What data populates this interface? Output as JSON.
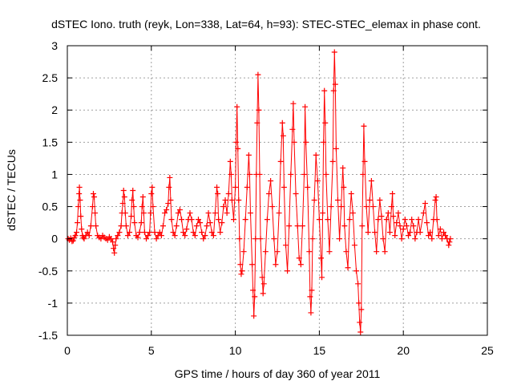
{
  "chart_data": {
    "type": "scatter",
    "title": "dSTEC Iono. truth (reyk, Lon=338, Lat=64, h=93): STEC-STEC_elemax in phase cont.",
    "xlabel": "GPS time / hours of day 360 of year 2011",
    "ylabel": "dSTEC  / TECUs",
    "xlim": [
      0,
      25
    ],
    "ylim": [
      -1.5,
      3
    ],
    "x_ticks": [
      "0",
      "5",
      "10",
      "15",
      "20",
      "25"
    ],
    "y_ticks": [
      "-1.5",
      "-1",
      "-0.5",
      "0",
      "0.5",
      "1",
      "1.5",
      "2",
      "2.5",
      "3"
    ],
    "grid": true,
    "marker": "+",
    "color": "#ff0000",
    "series": [
      {
        "values": [
          [
            0.05,
            0.0
          ],
          [
            0.12,
            -0.02
          ],
          [
            0.2,
            0.01
          ],
          [
            0.28,
            -0.04
          ],
          [
            0.35,
            -0.03
          ],
          [
            0.42,
            0.02
          ],
          [
            0.48,
            0.05
          ],
          [
            0.55,
            0.1
          ],
          [
            0.6,
            0.25
          ],
          [
            0.65,
            0.5
          ],
          [
            0.7,
            0.7
          ],
          [
            0.72,
            0.8
          ],
          [
            0.76,
            0.6
          ],
          [
            0.8,
            0.35
          ],
          [
            0.85,
            0.15
          ],
          [
            0.9,
            0.05
          ],
          [
            0.95,
            0.02
          ],
          [
            1.0,
            0.0
          ],
          [
            1.1,
            0.05
          ],
          [
            1.2,
            0.1
          ],
          [
            1.3,
            0.05
          ],
          [
            1.4,
            0.2
          ],
          [
            1.5,
            0.5
          ],
          [
            1.55,
            0.7
          ],
          [
            1.6,
            0.65
          ],
          [
            1.65,
            0.4
          ],
          [
            1.7,
            0.2
          ],
          [
            1.8,
            0.05
          ],
          [
            1.9,
            0.02
          ],
          [
            2.0,
            0.0
          ],
          [
            2.1,
            0.05
          ],
          [
            2.2,
            0.02
          ],
          [
            2.3,
            0.0
          ],
          [
            2.4,
            -0.02
          ],
          [
            2.5,
            0.03
          ],
          [
            2.6,
            0.0
          ],
          [
            2.7,
            -0.05
          ],
          [
            2.75,
            -0.15
          ],
          [
            2.8,
            -0.22
          ],
          [
            2.85,
            -0.1
          ],
          [
            2.9,
            0.0
          ],
          [
            3.0,
            0.05
          ],
          [
            3.1,
            0.1
          ],
          [
            3.2,
            0.2
          ],
          [
            3.25,
            0.4
          ],
          [
            3.3,
            0.55
          ],
          [
            3.35,
            0.75
          ],
          [
            3.4,
            0.65
          ],
          [
            3.45,
            0.4
          ],
          [
            3.5,
            0.2
          ],
          [
            3.6,
            0.05
          ],
          [
            3.7,
            0.1
          ],
          [
            3.8,
            0.35
          ],
          [
            3.85,
            0.6
          ],
          [
            3.9,
            0.75
          ],
          [
            3.95,
            0.5
          ],
          [
            4.0,
            0.25
          ],
          [
            4.1,
            0.05
          ],
          [
            4.2,
            0.02
          ],
          [
            4.3,
            0.1
          ],
          [
            4.4,
            0.25
          ],
          [
            4.45,
            0.5
          ],
          [
            4.5,
            0.65
          ],
          [
            4.55,
            0.4
          ],
          [
            4.6,
            0.1
          ],
          [
            4.7,
            0.0
          ],
          [
            4.8,
            0.05
          ],
          [
            4.9,
            0.1
          ],
          [
            4.95,
            0.4
          ],
          [
            5.0,
            0.7
          ],
          [
            5.05,
            0.8
          ],
          [
            5.1,
            0.5
          ],
          [
            5.2,
            0.1
          ],
          [
            5.3,
            0.0
          ],
          [
            5.4,
            0.05
          ],
          [
            5.5,
            0.1
          ],
          [
            5.6,
            0.05
          ],
          [
            5.7,
            0.2
          ],
          [
            5.8,
            0.4
          ],
          [
            5.9,
            0.45
          ],
          [
            6.0,
            0.55
          ],
          [
            6.05,
            0.8
          ],
          [
            6.1,
            0.95
          ],
          [
            6.15,
            0.6
          ],
          [
            6.2,
            0.3
          ],
          [
            6.3,
            0.1
          ],
          [
            6.4,
            0.05
          ],
          [
            6.5,
            0.2
          ],
          [
            6.6,
            0.4
          ],
          [
            6.7,
            0.45
          ],
          [
            6.8,
            0.3
          ],
          [
            6.9,
            0.1
          ],
          [
            7.0,
            0.05
          ],
          [
            7.1,
            0.15
          ],
          [
            7.2,
            0.3
          ],
          [
            7.3,
            0.4
          ],
          [
            7.4,
            0.3
          ],
          [
            7.5,
            0.1
          ],
          [
            7.6,
            0.05
          ],
          [
            7.7,
            0.2
          ],
          [
            7.8,
            0.3
          ],
          [
            7.9,
            0.25
          ],
          [
            8.0,
            0.1
          ],
          [
            8.1,
            0.0
          ],
          [
            8.2,
            0.05
          ],
          [
            8.3,
            0.2
          ],
          [
            8.4,
            0.4
          ],
          [
            8.5,
            0.25
          ],
          [
            8.6,
            0.1
          ],
          [
            8.7,
            0.05
          ],
          [
            8.8,
            0.4
          ],
          [
            8.9,
            0.8
          ],
          [
            8.95,
            0.7
          ],
          [
            9.0,
            0.3
          ],
          [
            9.1,
            0.1
          ],
          [
            9.2,
            0.25
          ],
          [
            9.3,
            0.5
          ],
          [
            9.4,
            0.6
          ],
          [
            9.5,
            0.4
          ],
          [
            9.6,
            0.7
          ],
          [
            9.7,
            1.2
          ],
          [
            9.75,
            1.0
          ],
          [
            9.8,
            0.6
          ],
          [
            9.9,
            0.3
          ],
          [
            10.0,
            0.8
          ],
          [
            10.05,
            1.5
          ],
          [
            10.1,
            2.05
          ],
          [
            10.15,
            1.4
          ],
          [
            10.2,
            0.6
          ],
          [
            10.25,
            0.0
          ],
          [
            10.3,
            -0.4
          ],
          [
            10.35,
            -0.55
          ],
          [
            10.4,
            -0.5
          ],
          [
            10.5,
            -0.2
          ],
          [
            10.6,
            0.3
          ],
          [
            10.7,
            0.8
          ],
          [
            10.8,
            1.3
          ],
          [
            10.85,
            1.0
          ],
          [
            10.9,
            0.4
          ],
          [
            11.0,
            -0.4
          ],
          [
            11.05,
            -0.8
          ],
          [
            11.1,
            -1.2
          ],
          [
            11.15,
            -0.9
          ],
          [
            11.2,
            0.0
          ],
          [
            11.25,
            1.0
          ],
          [
            11.3,
            1.8
          ],
          [
            11.35,
            2.55
          ],
          [
            11.4,
            2.0
          ],
          [
            11.45,
            1.0
          ],
          [
            11.5,
            0.0
          ],
          [
            11.6,
            -0.6
          ],
          [
            11.65,
            -0.85
          ],
          [
            11.7,
            -0.7
          ],
          [
            11.8,
            -0.2
          ],
          [
            11.9,
            0.3
          ],
          [
            12.0,
            0.7
          ],
          [
            12.1,
            0.9
          ],
          [
            12.2,
            0.5
          ],
          [
            12.3,
            0.0
          ],
          [
            12.4,
            -0.4
          ],
          [
            12.5,
            -0.2
          ],
          [
            12.6,
            0.4
          ],
          [
            12.7,
            1.2
          ],
          [
            12.8,
            1.8
          ],
          [
            12.85,
            1.6
          ],
          [
            12.9,
            0.8
          ],
          [
            13.0,
            -0.1
          ],
          [
            13.1,
            -0.5
          ],
          [
            13.2,
            0.2
          ],
          [
            13.3,
            1.0
          ],
          [
            13.4,
            1.7
          ],
          [
            13.45,
            2.1
          ],
          [
            13.5,
            1.5
          ],
          [
            13.6,
            0.7
          ],
          [
            13.7,
            0.2
          ],
          [
            13.8,
            -0.3
          ],
          [
            13.9,
            -0.4
          ],
          [
            14.0,
            0.2
          ],
          [
            14.1,
            1.0
          ],
          [
            14.15,
            2.05
          ],
          [
            14.2,
            1.5
          ],
          [
            14.3,
            0.8
          ],
          [
            14.4,
            -0.2
          ],
          [
            14.45,
            -0.9
          ],
          [
            14.5,
            -1.15
          ],
          [
            14.55,
            -0.8
          ],
          [
            14.6,
            0.0
          ],
          [
            14.7,
            0.6
          ],
          [
            14.8,
            1.3
          ],
          [
            14.9,
            0.9
          ],
          [
            15.0,
            0.3
          ],
          [
            15.1,
            -0.3
          ],
          [
            15.15,
            -0.6
          ],
          [
            15.2,
            0.4
          ],
          [
            15.25,
            1.5
          ],
          [
            15.3,
            2.3
          ],
          [
            15.35,
            1.8
          ],
          [
            15.4,
            1.0
          ],
          [
            15.5,
            0.3
          ],
          [
            15.6,
            -0.2
          ],
          [
            15.7,
            0.5
          ],
          [
            15.8,
            1.2
          ],
          [
            15.85,
            2.3
          ],
          [
            15.9,
            2.9
          ],
          [
            15.95,
            2.4
          ],
          [
            16.0,
            1.4
          ],
          [
            16.1,
            0.6
          ],
          [
            16.2,
            0.0
          ],
          [
            16.3,
            0.5
          ],
          [
            16.4,
            1.1
          ],
          [
            16.45,
            0.8
          ],
          [
            16.5,
            0.2
          ],
          [
            16.6,
            -0.2
          ],
          [
            16.7,
            -0.45
          ],
          [
            16.8,
            0.3
          ],
          [
            16.9,
            0.7
          ],
          [
            17.0,
            0.4
          ],
          [
            17.1,
            -0.1
          ],
          [
            17.2,
            -0.5
          ],
          [
            17.3,
            -0.7
          ],
          [
            17.35,
            -1.0
          ],
          [
            17.4,
            -1.3
          ],
          [
            17.45,
            -1.45
          ],
          [
            17.5,
            -1.1
          ],
          [
            17.55,
            0.2
          ],
          [
            17.6,
            1.0
          ],
          [
            17.65,
            1.75
          ],
          [
            17.7,
            1.2
          ],
          [
            17.8,
            0.5
          ],
          [
            17.9,
            0.1
          ],
          [
            18.0,
            0.6
          ],
          [
            18.1,
            0.9
          ],
          [
            18.2,
            0.5
          ],
          [
            18.3,
            0.1
          ],
          [
            18.4,
            -0.2
          ],
          [
            18.5,
            0.3
          ],
          [
            18.6,
            0.6
          ],
          [
            18.7,
            0.35
          ],
          [
            18.8,
            0.0
          ],
          [
            18.9,
            -0.2
          ],
          [
            19.0,
            0.3
          ],
          [
            19.1,
            0.4
          ],
          [
            19.2,
            0.1
          ],
          [
            19.3,
            0.5
          ],
          [
            19.35,
            0.7
          ],
          [
            19.4,
            0.35
          ],
          [
            19.5,
            0.05
          ],
          [
            19.6,
            0.25
          ],
          [
            19.7,
            0.4
          ],
          [
            19.8,
            0.2
          ],
          [
            19.9,
            0.0
          ],
          [
            20.0,
            0.15
          ],
          [
            20.1,
            0.3
          ],
          [
            20.2,
            0.2
          ],
          [
            20.3,
            0.05
          ],
          [
            20.4,
            0.1
          ],
          [
            20.5,
            0.3
          ],
          [
            20.6,
            0.2
          ],
          [
            20.7,
            0.0
          ],
          [
            20.8,
            0.1
          ],
          [
            20.9,
            0.3
          ],
          [
            21.0,
            0.1
          ],
          [
            21.2,
            0.4
          ],
          [
            21.3,
            0.55
          ],
          [
            21.4,
            0.25
          ],
          [
            21.5,
            0.05
          ],
          [
            21.6,
            0.1
          ],
          [
            21.7,
            0.0
          ],
          [
            21.8,
            0.3
          ],
          [
            21.9,
            0.6
          ],
          [
            21.95,
            0.65
          ],
          [
            22.0,
            0.3
          ],
          [
            22.1,
            0.05
          ],
          [
            22.2,
            0.15
          ],
          [
            22.3,
            0.0
          ],
          [
            22.4,
            0.1
          ],
          [
            22.5,
            0.05
          ],
          [
            22.6,
            0.0
          ],
          [
            22.7,
            -0.1
          ],
          [
            22.75,
            -0.05
          ],
          [
            22.8,
            0.0
          ]
        ]
      }
    ]
  }
}
